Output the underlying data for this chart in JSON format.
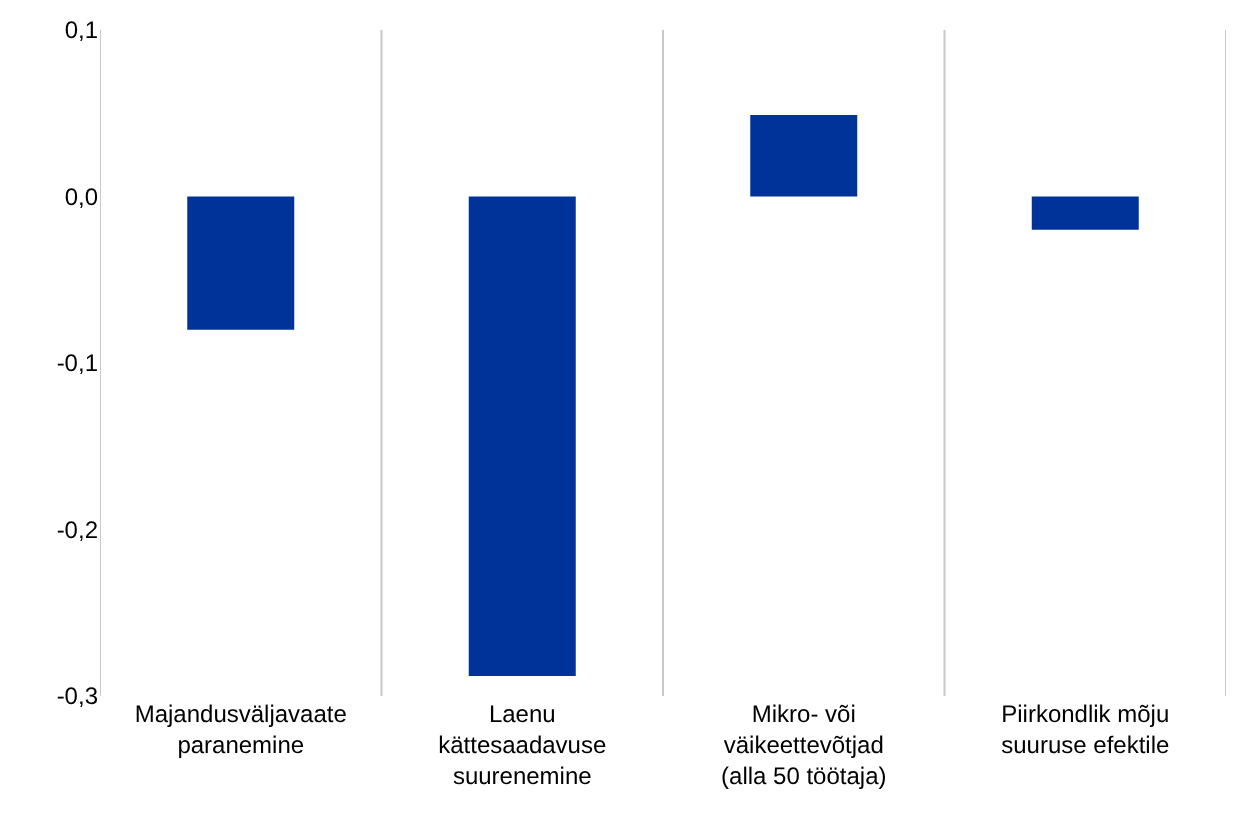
{
  "chart_data": {
    "type": "bar",
    "categories": [
      "Majandusväljavaate paranemine",
      "Laenu kättesaadavuse suurenemine",
      "Mikro- või väikeettevõtjad (alla 50 töötaja)",
      "Piirkondlik mõju suuruse efektile"
    ],
    "values": [
      -0.08,
      -0.288,
      0.049,
      -0.02
    ],
    "color": "#003399",
    "ylim": [
      -0.3,
      0.1
    ],
    "yticks": [
      {
        "value": 0.1,
        "label": "0,1"
      },
      {
        "value": 0.0,
        "label": "0,0"
      },
      {
        "value": -0.1,
        "label": "-0,1"
      },
      {
        "value": -0.2,
        "label": "-0,2"
      },
      {
        "value": -0.3,
        "label": "-0,3"
      }
    ],
    "grid": "x"
  }
}
